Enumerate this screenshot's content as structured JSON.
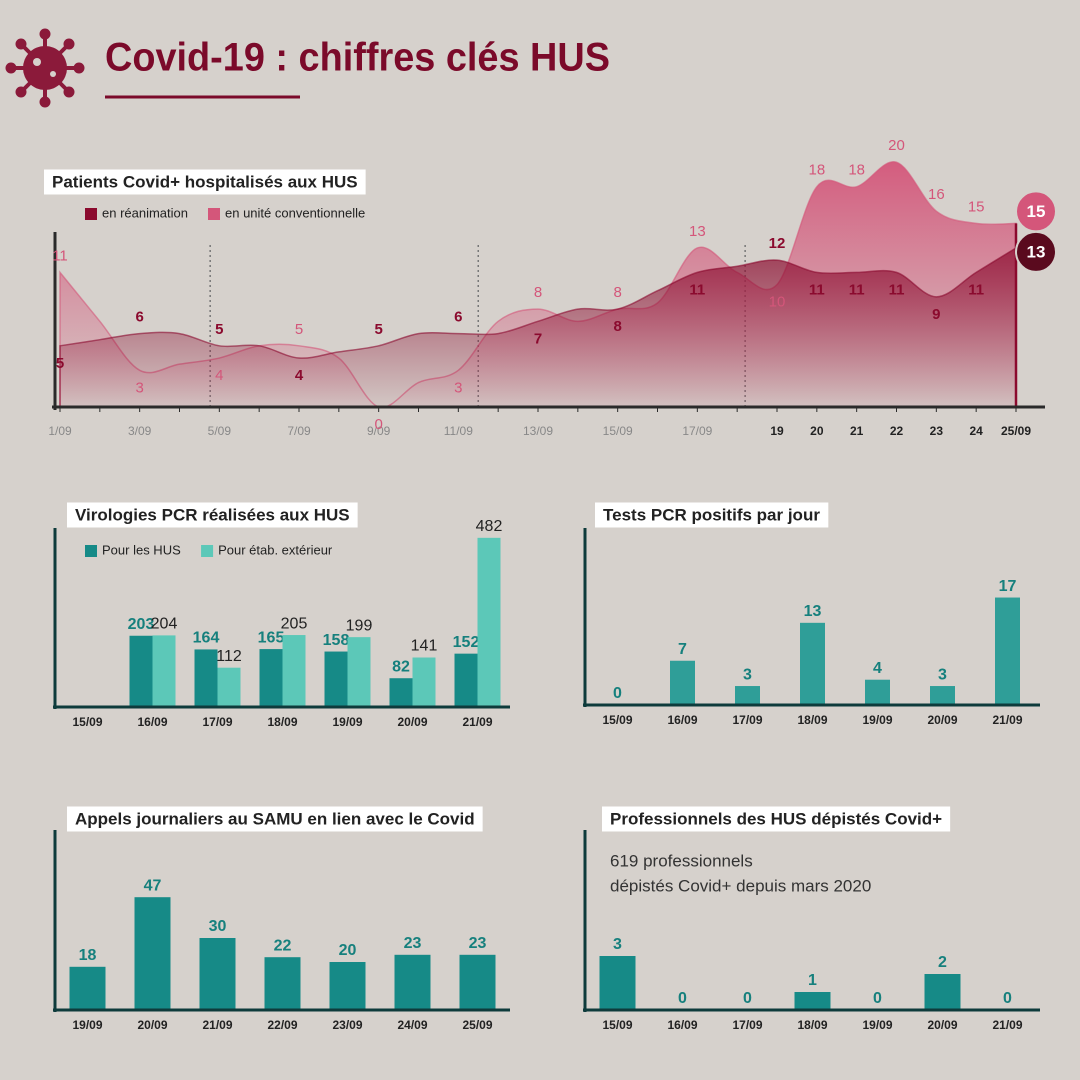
{
  "title": "Covid-19 : chiffres clés HUS",
  "chart_data": [
    {
      "type": "area",
      "title": "Patients Covid+ hospitalisés aux HUS",
      "categories": [
        "1/09",
        null,
        "3/09",
        null,
        "5/09",
        null,
        "7/09",
        null,
        "9/09",
        null,
        "11/09",
        null,
        "13/09",
        null,
        "15/09",
        null,
        "17/09",
        null,
        "19",
        "20",
        "21",
        "22",
        "23",
        "24",
        "25/09"
      ],
      "series": [
        {
          "name": "en réanimation",
          "color": "#8b0a2e",
          "values": [
            5,
            5.5,
            6,
            6,
            5,
            5,
            4,
            4.5,
            5,
            6,
            6,
            6,
            7,
            8,
            8,
            9.5,
            11,
            11.5,
            12,
            11,
            11,
            11,
            9,
            11,
            13
          ]
        },
        {
          "name": "en unité conventionnelle",
          "color": "#d4567a",
          "values": [
            11,
            7,
            3,
            3.5,
            4,
            5,
            5,
            4,
            0,
            2,
            3,
            7,
            8,
            7,
            8,
            8.5,
            13,
            11,
            10,
            18,
            18,
            20,
            16,
            15,
            15
          ]
        }
      ],
      "ylim": [
        0,
        21
      ]
    },
    {
      "type": "bar",
      "title": "Virologies PCR réalisées aux HUS",
      "categories": [
        "15/09",
        "16/09",
        "17/09",
        "18/09",
        "19/09",
        "20/09",
        "21/09"
      ],
      "series": [
        {
          "name": "Pour les HUS",
          "color": "#168a87",
          "values": [
            null,
            203,
            164,
            165,
            158,
            82,
            152
          ]
        },
        {
          "name": "Pour étab. extérieur",
          "color": "#5cc8b8",
          "values": [
            null,
            204,
            112,
            205,
            199,
            141,
            482
          ]
        }
      ],
      "ylim": [
        0,
        510
      ]
    },
    {
      "type": "bar",
      "title": "Tests PCR positifs par jour",
      "categories": [
        "15/09",
        "16/09",
        "17/09",
        "18/09",
        "19/09",
        "20/09",
        "21/09"
      ],
      "values": [
        0,
        7,
        3,
        13,
        4,
        3,
        17
      ],
      "color": "#2f9e98",
      "ylim": [
        0,
        28
      ]
    },
    {
      "type": "bar",
      "title": "Appels journaliers au SAMU en lien avec le Covid",
      "categories": [
        "19/09",
        "20/09",
        "21/09",
        "22/09",
        "23/09",
        "24/09",
        "25/09"
      ],
      "values": [
        18,
        47,
        30,
        22,
        20,
        23,
        23
      ],
      "color": "#168a87",
      "ylim": [
        0,
        75
      ]
    },
    {
      "type": "bar",
      "title": "Professionnels des HUS dépistés Covid+",
      "annotation": [
        "619 professionnels",
        "dépistés Covid+ depuis mars 2020"
      ],
      "categories": [
        "15/09",
        "16/09",
        "17/09",
        "18/09",
        "19/09",
        "20/09",
        "21/09"
      ],
      "values": [
        3,
        0,
        0,
        1,
        0,
        2,
        0
      ],
      "color": "#168a87",
      "ylim": [
        0,
        10
      ]
    }
  ]
}
